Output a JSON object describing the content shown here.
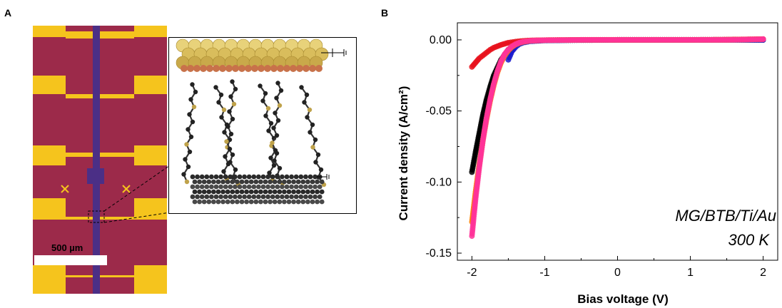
{
  "panel_a": {
    "label": "A",
    "scale_bar": "500 µm",
    "colors": {
      "gold": "#f5c41d",
      "substrate": "#9c2a4a",
      "graphene": "#4b2f86"
    }
  },
  "panel_b": {
    "label": "B"
  },
  "chart_data": {
    "type": "scatter",
    "xlabel": "Bias voltage (V)",
    "ylabel": "Current density (A/cm²)",
    "xlim": [
      -2.2,
      2.2
    ],
    "ylim": [
      -0.155,
      0.012
    ],
    "x_ticks": [
      "-2",
      "-1",
      "0",
      "1",
      "2"
    ],
    "y_ticks": [
      "0.00",
      "-0.05",
      "-0.10",
      "-0.15"
    ],
    "annotation": [
      "MG/BTB/Ti/Au",
      "300 K"
    ],
    "series": [
      {
        "color": "#000000",
        "x": [
          -2.0,
          -1.95,
          -1.9,
          -1.85,
          -1.8,
          -1.75,
          -1.7,
          -1.6,
          -1.5,
          -1.4,
          -1.3,
          -1.2,
          -1.0,
          -0.5,
          0.0,
          0.5,
          1.0,
          1.5,
          2.0
        ],
        "y": [
          -0.093,
          -0.079,
          -0.066,
          -0.053,
          -0.042,
          -0.033,
          -0.025,
          -0.014,
          -0.007,
          -0.003,
          -0.0015,
          -0.0008,
          -0.0003,
          -0.0001,
          0.0,
          0.0,
          0.0,
          0.0,
          0.0
        ]
      },
      {
        "color": "#e8121c",
        "x": [
          -2.0,
          -1.95,
          -1.9,
          -1.85,
          -1.8,
          -1.75,
          -1.7,
          -1.6,
          -1.5,
          -1.4,
          -1.3,
          -1.2,
          -1.0,
          -0.5,
          0.0,
          0.5,
          1.0,
          1.5,
          2.0
        ],
        "y": [
          -0.019,
          -0.016,
          -0.013,
          -0.011,
          -0.009,
          -0.007,
          -0.0055,
          -0.0035,
          -0.002,
          -0.0012,
          -0.0007,
          -0.0004,
          -0.0002,
          -0.0001,
          0.0,
          0.0,
          0.0,
          0.0002,
          0.0005
        ]
      },
      {
        "color": "#1a1acc",
        "x": [
          -1.5,
          -1.45,
          -1.4,
          -1.35,
          -1.3,
          -1.2,
          -1.0,
          -0.5,
          0.0,
          0.5,
          1.0,
          1.5,
          2.0
        ],
        "y": [
          -0.014,
          -0.008,
          -0.005,
          -0.003,
          -0.002,
          -0.001,
          -0.0004,
          -0.0001,
          0.0,
          0.0,
          0.0,
          0.0,
          0.0
        ]
      },
      {
        "color": "#ff7f00",
        "x": [
          -2.0,
          -1.95,
          -1.9,
          -1.85,
          -1.8,
          -1.75,
          -1.7,
          -1.65,
          -1.6,
          -1.55,
          -1.5,
          -1.45,
          -1.4,
          -1.35,
          -1.3,
          -1.2,
          -1.0,
          -0.5,
          0.0,
          0.5,
          1.0,
          1.5,
          2.0
        ],
        "y": [
          -0.128,
          -0.107,
          -0.088,
          -0.071,
          -0.056,
          -0.043,
          -0.032,
          -0.023,
          -0.016,
          -0.011,
          -0.0075,
          -0.005,
          -0.0033,
          -0.0022,
          -0.0015,
          -0.0007,
          -0.0002,
          0.0,
          0.0,
          0.0,
          0.0,
          0.0,
          0.0005
        ]
      },
      {
        "color": "#ff3399",
        "x": [
          -2.0,
          -1.95,
          -1.9,
          -1.85,
          -1.8,
          -1.75,
          -1.7,
          -1.65,
          -1.6,
          -1.55,
          -1.5,
          -1.45,
          -1.4,
          -1.35,
          -1.3,
          -1.2,
          -1.0,
          -0.5,
          0.0,
          0.5,
          1.0,
          1.5,
          2.0
        ],
        "y": [
          -0.138,
          -0.112,
          -0.09,
          -0.071,
          -0.055,
          -0.042,
          -0.031,
          -0.022,
          -0.015,
          -0.01,
          -0.0068,
          -0.0045,
          -0.003,
          -0.002,
          -0.0013,
          -0.0006,
          -0.0002,
          0.0,
          0.0,
          0.0,
          0.0,
          0.0,
          0.0005
        ]
      }
    ]
  }
}
